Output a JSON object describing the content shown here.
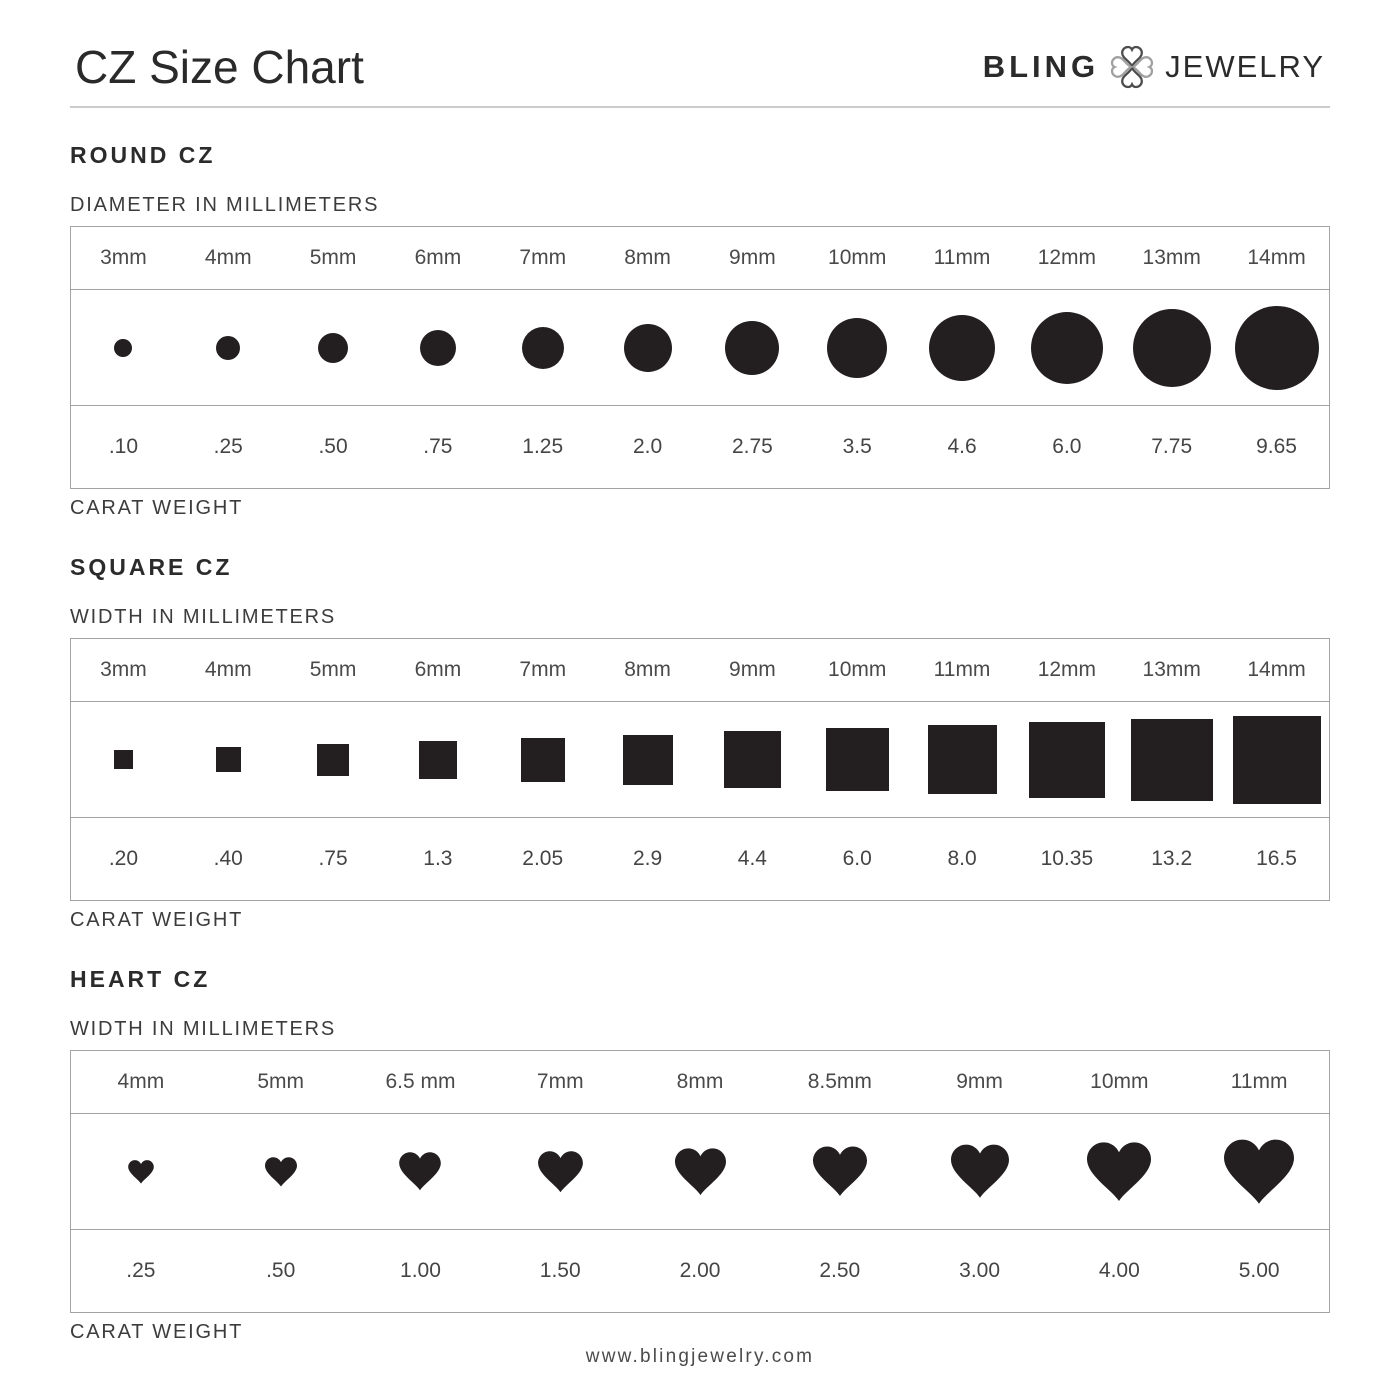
{
  "page": {
    "title": "CZ Size Chart",
    "brand": {
      "name_left": "BLING",
      "name_right": "JEWELRY",
      "icon": "clover-hearts-icon"
    },
    "footer_url": "www.blingjewelry.com"
  },
  "colors": {
    "shape": "#231f20",
    "heading": "#2b2b2b",
    "text": "#4a4a4a",
    "border": "#a3a3a3",
    "rule": "#cccccc",
    "logo_dark": "#4d4d4d",
    "logo_gray": "#a0a0a0"
  },
  "sections": [
    {
      "id": "round",
      "heading": "ROUND CZ",
      "dimension_label": "DIAMETER IN MILLIMETERS",
      "weight_label": "CARAT WEIGHT",
      "shape": "circle",
      "columns": [
        {
          "size_label": "3mm",
          "mm": 3,
          "carat": ".10"
        },
        {
          "size_label": "4mm",
          "mm": 4,
          "carat": ".25"
        },
        {
          "size_label": "5mm",
          "mm": 5,
          "carat": ".50"
        },
        {
          "size_label": "6mm",
          "mm": 6,
          "carat": ".75"
        },
        {
          "size_label": "7mm",
          "mm": 7,
          "carat": "1.25"
        },
        {
          "size_label": "8mm",
          "mm": 8,
          "carat": "2.0"
        },
        {
          "size_label": "9mm",
          "mm": 9,
          "carat": "2.75"
        },
        {
          "size_label": "10mm",
          "mm": 10,
          "carat": "3.5"
        },
        {
          "size_label": "11mm",
          "mm": 11,
          "carat": "4.6"
        },
        {
          "size_label": "12mm",
          "mm": 12,
          "carat": "6.0"
        },
        {
          "size_label": "13mm",
          "mm": 13,
          "carat": "7.75"
        },
        {
          "size_label": "14mm",
          "mm": 14,
          "carat": "9.65"
        }
      ]
    },
    {
      "id": "square",
      "heading": "SQUARE CZ",
      "dimension_label": "WIDTH IN MILLIMETERS",
      "weight_label": "CARAT WEIGHT",
      "shape": "square",
      "columns": [
        {
          "size_label": "3mm",
          "mm": 3,
          "carat": ".20"
        },
        {
          "size_label": "4mm",
          "mm": 4,
          "carat": ".40"
        },
        {
          "size_label": "5mm",
          "mm": 5,
          "carat": ".75"
        },
        {
          "size_label": "6mm",
          "mm": 6,
          "carat": "1.3"
        },
        {
          "size_label": "7mm",
          "mm": 7,
          "carat": "2.05"
        },
        {
          "size_label": "8mm",
          "mm": 8,
          "carat": "2.9"
        },
        {
          "size_label": "9mm",
          "mm": 9,
          "carat": "4.4"
        },
        {
          "size_label": "10mm",
          "mm": 10,
          "carat": "6.0"
        },
        {
          "size_label": "11mm",
          "mm": 11,
          "carat": "8.0"
        },
        {
          "size_label": "12mm",
          "mm": 12,
          "carat": "10.35"
        },
        {
          "size_label": "13mm",
          "mm": 13,
          "carat": "13.2"
        },
        {
          "size_label": "14mm",
          "mm": 14,
          "carat": "16.5"
        }
      ]
    },
    {
      "id": "heart",
      "heading": "HEART CZ",
      "dimension_label": "WIDTH IN MILLIMETERS",
      "weight_label": "CARAT WEIGHT",
      "shape": "heart",
      "columns": [
        {
          "size_label": "4mm",
          "mm": 4,
          "carat": ".25"
        },
        {
          "size_label": "5mm",
          "mm": 5,
          "carat": ".50"
        },
        {
          "size_label": "6.5 mm",
          "mm": 6.5,
          "carat": "1.00"
        },
        {
          "size_label": "7mm",
          "mm": 7,
          "carat": "1.50"
        },
        {
          "size_label": "8mm",
          "mm": 8,
          "carat": "2.00"
        },
        {
          "size_label": "8.5mm",
          "mm": 8.5,
          "carat": "2.50"
        },
        {
          "size_label": "9mm",
          "mm": 9,
          "carat": "3.00"
        },
        {
          "size_label": "10mm",
          "mm": 10,
          "carat": "4.00"
        },
        {
          "size_label": "11mm",
          "mm": 11,
          "carat": "5.00"
        }
      ]
    }
  ],
  "chart_data": [
    {
      "type": "table",
      "title": "ROUND CZ",
      "xlabel": "DIAMETER IN MILLIMETERS",
      "ylabel": "CARAT WEIGHT",
      "categories": [
        "3mm",
        "4mm",
        "5mm",
        "6mm",
        "7mm",
        "8mm",
        "9mm",
        "10mm",
        "11mm",
        "12mm",
        "13mm",
        "14mm"
      ],
      "values": [
        0.1,
        0.25,
        0.5,
        0.75,
        1.25,
        2.0,
        2.75,
        3.5,
        4.6,
        6.0,
        7.75,
        9.65
      ]
    },
    {
      "type": "table",
      "title": "SQUARE CZ",
      "xlabel": "WIDTH IN MILLIMETERS",
      "ylabel": "CARAT WEIGHT",
      "categories": [
        "3mm",
        "4mm",
        "5mm",
        "6mm",
        "7mm",
        "8mm",
        "9mm",
        "10mm",
        "11mm",
        "12mm",
        "13mm",
        "14mm"
      ],
      "values": [
        0.2,
        0.4,
        0.75,
        1.3,
        2.05,
        2.9,
        4.4,
        6.0,
        8.0,
        10.35,
        13.2,
        16.5
      ]
    },
    {
      "type": "table",
      "title": "HEART CZ",
      "xlabel": "WIDTH IN MILLIMETERS",
      "ylabel": "CARAT WEIGHT",
      "categories": [
        "4mm",
        "5mm",
        "6.5 mm",
        "7mm",
        "8mm",
        "8.5mm",
        "9mm",
        "10mm",
        "11mm"
      ],
      "values": [
        0.25,
        0.5,
        1.0,
        1.5,
        2.0,
        2.5,
        3.0,
        4.0,
        5.0
      ]
    }
  ]
}
